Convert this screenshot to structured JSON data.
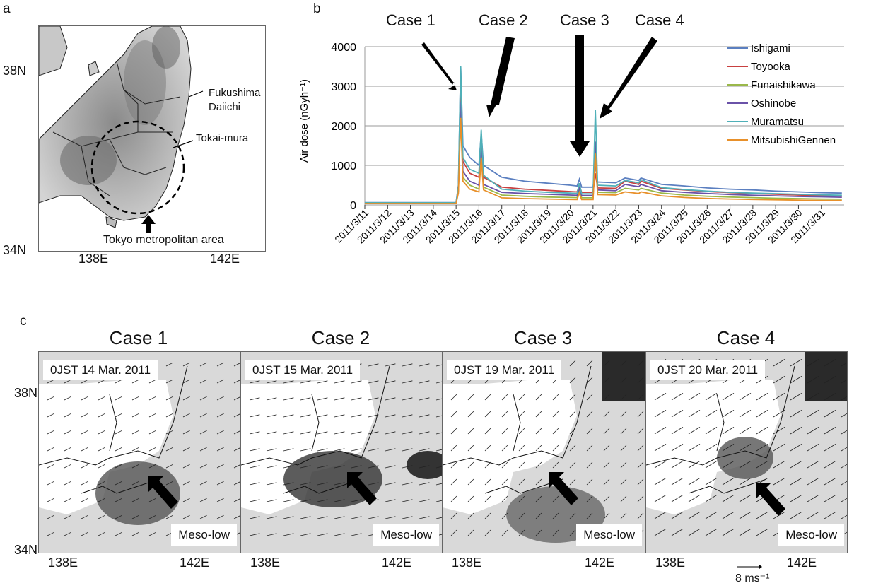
{
  "panel_a": {
    "letter": "a",
    "lat_labels": [
      "38N",
      "34N"
    ],
    "lon_labels": [
      "138E",
      "142E"
    ],
    "labels": {
      "fukushima": "Fukushima\nDaiichi",
      "tokai": "Tokai-mura",
      "tokyo": "Tokyo metropolitan area"
    }
  },
  "panel_b": {
    "letter": "b",
    "case_labels": [
      "Case 1",
      "Case 2",
      "Case 3",
      "Case 4"
    ]
  },
  "chart_data": {
    "type": "line",
    "ylabel": "Air dose   (nGyh⁻¹)",
    "ylim": [
      0,
      4000
    ],
    "yticks": [
      0,
      1000,
      2000,
      3000,
      4000
    ],
    "xlim": [
      0,
      21
    ],
    "categories": [
      "2011/3/11",
      "2011/3/12",
      "2011/3/13",
      "2011/3/14",
      "2011/3/15",
      "2011/3/16",
      "2011/3/17",
      "2011/3/18",
      "2011/3/19",
      "2011/3/20",
      "2011/3/21",
      "2011/3/22",
      "2011/3/23",
      "2011/3/24",
      "2011/3/25",
      "2011/3/26",
      "2011/3/27",
      "2011/3/28",
      "2011/3/29",
      "2011/3/30",
      "2011/3/31"
    ],
    "grid": true,
    "legend": "right",
    "series": [
      {
        "name": "Ishigami",
        "color": "#5b7fc0",
        "points": [
          [
            0,
            60
          ],
          [
            1.2,
            60
          ],
          [
            3.1,
            60
          ],
          [
            4.0,
            60
          ],
          [
            4.1,
            500
          ],
          [
            4.2,
            3500
          ],
          [
            4.3,
            1500
          ],
          [
            4.6,
            1200
          ],
          [
            5.0,
            1000
          ],
          [
            5.1,
            1800
          ],
          [
            5.2,
            1000
          ],
          [
            6,
            700
          ],
          [
            7,
            600
          ],
          [
            8,
            550
          ],
          [
            9,
            500
          ],
          [
            9.3,
            480
          ],
          [
            9.4,
            650
          ],
          [
            9.5,
            450
          ],
          [
            10.0,
            450
          ],
          [
            10.1,
            1000
          ],
          [
            10.2,
            580
          ],
          [
            11,
            560
          ],
          [
            11.4,
            680
          ],
          [
            11.7,
            650
          ],
          [
            12,
            620
          ],
          [
            12.1,
            680
          ],
          [
            13,
            520
          ],
          [
            14,
            480
          ],
          [
            15,
            430
          ],
          [
            16,
            400
          ],
          [
            17,
            380
          ],
          [
            18,
            350
          ],
          [
            19,
            330
          ],
          [
            20,
            310
          ],
          [
            20.9,
            300
          ]
        ]
      },
      {
        "name": "Toyooka",
        "color": "#c84040",
        "points": [
          [
            0,
            50
          ],
          [
            1.2,
            50
          ],
          [
            3.1,
            50
          ],
          [
            4.0,
            50
          ],
          [
            4.1,
            400
          ],
          [
            4.2,
            2800
          ],
          [
            4.3,
            1100
          ],
          [
            4.6,
            800
          ],
          [
            5.0,
            700
          ],
          [
            5.1,
            1500
          ],
          [
            5.2,
            700
          ],
          [
            6,
            450
          ],
          [
            7,
            400
          ],
          [
            8,
            370
          ],
          [
            9,
            340
          ],
          [
            9.3,
            330
          ],
          [
            9.4,
            500
          ],
          [
            9.5,
            320
          ],
          [
            10.0,
            320
          ],
          [
            10.1,
            800
          ],
          [
            10.2,
            430
          ],
          [
            11,
            420
          ],
          [
            11.4,
            600
          ],
          [
            11.7,
            560
          ],
          [
            12,
            520
          ],
          [
            12.1,
            600
          ],
          [
            13,
            420
          ],
          [
            14,
            380
          ],
          [
            15,
            340
          ],
          [
            16,
            310
          ],
          [
            17,
            290
          ],
          [
            18,
            270
          ],
          [
            19,
            250
          ],
          [
            20,
            235
          ],
          [
            20.9,
            225
          ]
        ]
      },
      {
        "name": "Funaishikawa",
        "color": "#9ab84a",
        "points": [
          [
            0,
            40
          ],
          [
            1.2,
            40
          ],
          [
            3.1,
            40
          ],
          [
            4.0,
            40
          ],
          [
            4.1,
            350
          ],
          [
            4.2,
            2400
          ],
          [
            4.3,
            700
          ],
          [
            4.6,
            500
          ],
          [
            5.0,
            400
          ],
          [
            5.1,
            1300
          ],
          [
            5.2,
            450
          ],
          [
            6,
            250
          ],
          [
            7,
            220
          ],
          [
            8,
            200
          ],
          [
            9,
            190
          ],
          [
            9.3,
            185
          ],
          [
            9.4,
            400
          ],
          [
            9.5,
            180
          ],
          [
            10.0,
            180
          ],
          [
            10.1,
            1400
          ],
          [
            10.2,
            320
          ],
          [
            11,
            310
          ],
          [
            11.4,
            420
          ],
          [
            11.7,
            400
          ],
          [
            12,
            380
          ],
          [
            12.1,
            420
          ],
          [
            13,
            300
          ],
          [
            14,
            250
          ],
          [
            15,
            220
          ],
          [
            16,
            200
          ],
          [
            17,
            185
          ],
          [
            18,
            170
          ],
          [
            19,
            160
          ],
          [
            20,
            150
          ],
          [
            20.9,
            145
          ]
        ]
      },
      {
        "name": "Oshinobe",
        "color": "#6a52a8",
        "points": [
          [
            0,
            45
          ],
          [
            1.2,
            45
          ],
          [
            3.1,
            45
          ],
          [
            4.0,
            45
          ],
          [
            4.1,
            380
          ],
          [
            4.2,
            2600
          ],
          [
            4.3,
            850
          ],
          [
            4.6,
            600
          ],
          [
            5.0,
            500
          ],
          [
            5.1,
            1400
          ],
          [
            5.2,
            520
          ],
          [
            6,
            320
          ],
          [
            7,
            290
          ],
          [
            8,
            270
          ],
          [
            9,
            250
          ],
          [
            9.3,
            245
          ],
          [
            9.4,
            430
          ],
          [
            9.5,
            240
          ],
          [
            10.0,
            240
          ],
          [
            10.1,
            1600
          ],
          [
            10.2,
            380
          ],
          [
            11,
            360
          ],
          [
            11.4,
            520
          ],
          [
            11.7,
            490
          ],
          [
            12,
            460
          ],
          [
            12.1,
            520
          ],
          [
            13,
            360
          ],
          [
            14,
            320
          ],
          [
            15,
            290
          ],
          [
            16,
            265
          ],
          [
            17,
            245
          ],
          [
            18,
            230
          ],
          [
            19,
            215
          ],
          [
            20,
            205
          ],
          [
            20.9,
            195
          ]
        ]
      },
      {
        "name": "Muramatsu",
        "color": "#4fb0b8",
        "points": [
          [
            0,
            55
          ],
          [
            1.2,
            55
          ],
          [
            3.1,
            55
          ],
          [
            4.0,
            55
          ],
          [
            4.1,
            450
          ],
          [
            4.2,
            3500
          ],
          [
            4.3,
            1200
          ],
          [
            4.6,
            900
          ],
          [
            5.0,
            800
          ],
          [
            5.1,
            1900
          ],
          [
            5.2,
            750
          ],
          [
            6,
            400
          ],
          [
            7,
            350
          ],
          [
            8,
            320
          ],
          [
            9,
            300
          ],
          [
            9.3,
            290
          ],
          [
            9.4,
            550
          ],
          [
            9.5,
            280
          ],
          [
            10.0,
            280
          ],
          [
            10.1,
            2400
          ],
          [
            10.2,
            500
          ],
          [
            11,
            480
          ],
          [
            11.4,
            620
          ],
          [
            11.7,
            590
          ],
          [
            12,
            560
          ],
          [
            12.1,
            640
          ],
          [
            13,
            440
          ],
          [
            14,
            390
          ],
          [
            15,
            350
          ],
          [
            16,
            320
          ],
          [
            17,
            300
          ],
          [
            18,
            285
          ],
          [
            19,
            270
          ],
          [
            20,
            255
          ],
          [
            20.9,
            245
          ]
        ]
      },
      {
        "name": "MitsubishiGennen",
        "color": "#e8902a",
        "points": [
          [
            0,
            35
          ],
          [
            1.2,
            35
          ],
          [
            3.1,
            35
          ],
          [
            4.0,
            35
          ],
          [
            4.1,
            300
          ],
          [
            4.2,
            2200
          ],
          [
            4.3,
            600
          ],
          [
            4.6,
            400
          ],
          [
            5.0,
            330
          ],
          [
            5.1,
            1200
          ],
          [
            5.2,
            380
          ],
          [
            6,
            180
          ],
          [
            7,
            160
          ],
          [
            8,
            150
          ],
          [
            9,
            140
          ],
          [
            9.3,
            138
          ],
          [
            9.4,
            300
          ],
          [
            9.5,
            135
          ],
          [
            10.0,
            135
          ],
          [
            10.1,
            1300
          ],
          [
            10.2,
            260
          ],
          [
            11,
            250
          ],
          [
            11.4,
            330
          ],
          [
            11.7,
            310
          ],
          [
            12,
            290
          ],
          [
            12.1,
            330
          ],
          [
            13,
            230
          ],
          [
            14,
            190
          ],
          [
            15,
            165
          ],
          [
            16,
            150
          ],
          [
            17,
            140
          ],
          [
            18,
            130
          ],
          [
            19,
            122
          ],
          [
            20,
            115
          ],
          [
            20.9,
            110
          ]
        ]
      }
    ]
  },
  "panel_c": {
    "letter": "c",
    "panels": [
      {
        "title": "Case 1",
        "date": "0JST 14 Mar. 2011",
        "meso": "Meso-low"
      },
      {
        "title": "Case 2",
        "date": "0JST 15 Mar. 2011",
        "meso": "Meso-low"
      },
      {
        "title": "Case 3",
        "date": "0JST 19 Mar. 2011",
        "meso": "Meso-low"
      },
      {
        "title": "Case 4",
        "date": "0JST 20 Mar. 2011",
        "meso": "Meso-low"
      }
    ],
    "lat_labels": [
      "38N",
      "34N"
    ],
    "lon_labels": [
      "138E",
      "142E"
    ],
    "scale_label": "8 ms⁻¹"
  }
}
